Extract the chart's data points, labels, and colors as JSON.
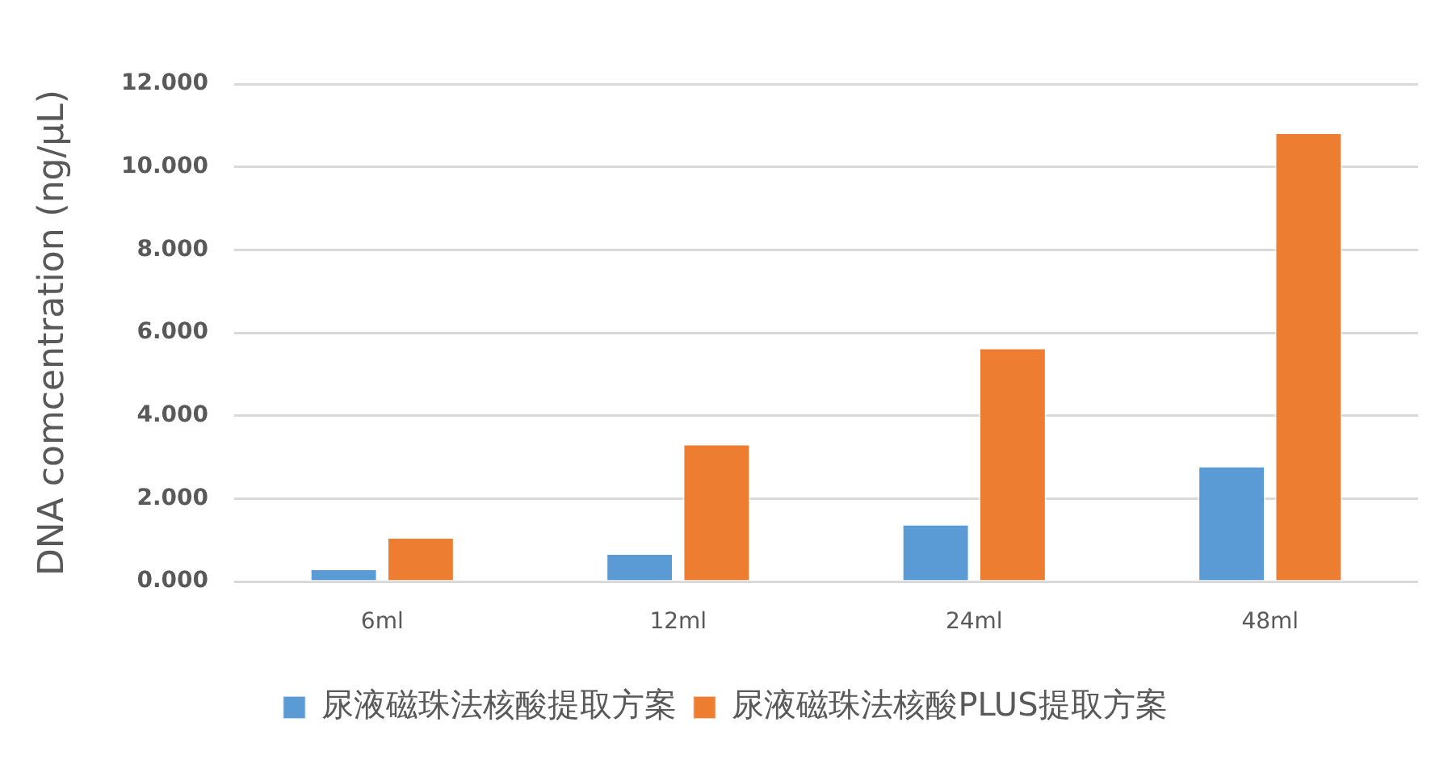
{
  "chart_data": {
    "type": "bar",
    "ylabel": "DNA comcentration (ng/μL)",
    "categories": [
      "6ml",
      "12ml",
      "24ml",
      "48ml"
    ],
    "series": [
      {
        "name": "尿液磁珠法核酸提取方案",
        "color": "#5b9bd5",
        "values": [
          0.31,
          0.68,
          1.39,
          2.79
        ]
      },
      {
        "name": "尿液磁珠法核酸PLUS提取方案",
        "color": "#ed7d31",
        "values": [
          1.07,
          3.32,
          5.64,
          10.83
        ]
      }
    ],
    "ylim": [
      0,
      12
    ],
    "yticks": [
      {
        "value": 0,
        "label": "0.000"
      },
      {
        "value": 2,
        "label": "2.000"
      },
      {
        "value": 4,
        "label": "4.000"
      },
      {
        "value": 6,
        "label": "6.000"
      },
      {
        "value": 8,
        "label": "8.000"
      },
      {
        "value": 10,
        "label": "10.000"
      },
      {
        "value": 12,
        "label": "12.000"
      }
    ],
    "grid": "y",
    "legend": "bottom"
  }
}
